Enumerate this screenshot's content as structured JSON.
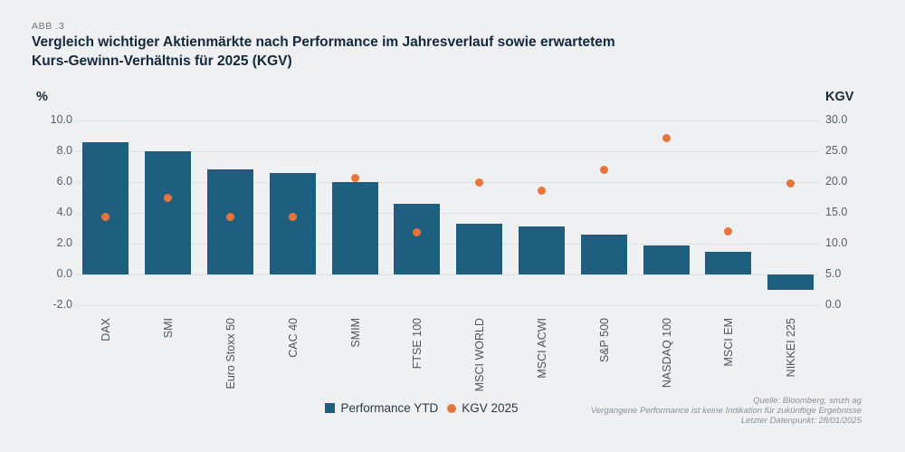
{
  "figure_label": "ABB .3",
  "title": "Vergleich wichtiger Aktienmärkte nach Performance im Jahresverlauf sowie erwartetem\nKurs-Gewinn-Verhältnis für 2025 (KGV)",
  "left_axis": {
    "label": "%",
    "tick_labels": [
      "10.0",
      "8.0",
      "6.0",
      "4.0",
      "2.0",
      "0.0",
      "-2.0"
    ],
    "tick_values": [
      10,
      8,
      6,
      4,
      2,
      0,
      -2
    ]
  },
  "right_axis": {
    "label": "KGV",
    "tick_labels": [
      "30.0",
      "25.0",
      "20.0",
      "15.0",
      "10.0",
      "5.0",
      "0.0"
    ],
    "tick_values": [
      30,
      25,
      20,
      15,
      10,
      5,
      0
    ]
  },
  "legend": [
    {
      "label": "Performance YTD",
      "marker": "square",
      "color": "#1e5f80"
    },
    {
      "label": "KGV 2025",
      "marker": "dot",
      "color": "#e8743a"
    }
  ],
  "footnotes": [
    "Quelle: Bloomberg, smzh ag",
    "Vergangene Performance ist keine Indikation für zukünftige Ergebnisse",
    "Letzter Datenpunkt: 28/01/2025"
  ],
  "colors": {
    "bar": "#1e5f80",
    "dot": "#e8743a",
    "background": "#eef0f1",
    "grid": "#dde0e2",
    "title": "#12283c"
  },
  "chart_data": {
    "type": "combo",
    "categories": [
      "DAX",
      "SMI",
      "Euro Stoxx 50",
      "CAC 40",
      "SMIM",
      "FTSE 100",
      "MSCI WORLD",
      "MSCI ACWI",
      "S&P 500",
      "NASDAQ 100",
      "MSCI EM",
      "NIKKEI 225"
    ],
    "series": [
      {
        "name": "Performance YTD",
        "type": "bar",
        "axis": "left",
        "unit": "%",
        "values": [
          8.6,
          8.0,
          6.8,
          6.6,
          6.0,
          4.6,
          3.3,
          3.1,
          2.6,
          1.9,
          1.5,
          -1.0
        ]
      },
      {
        "name": "KGV 2025",
        "type": "scatter",
        "axis": "right",
        "values": [
          14.4,
          17.4,
          14.4,
          14.4,
          20.7,
          11.8,
          19.9,
          18.6,
          22.0,
          27.1,
          12.0,
          19.8
        ]
      }
    ],
    "left_ylim": [
      -2,
      10
    ],
    "right_ylim": [
      0,
      30
    ],
    "grid": true,
    "legend_position": "bottom"
  }
}
